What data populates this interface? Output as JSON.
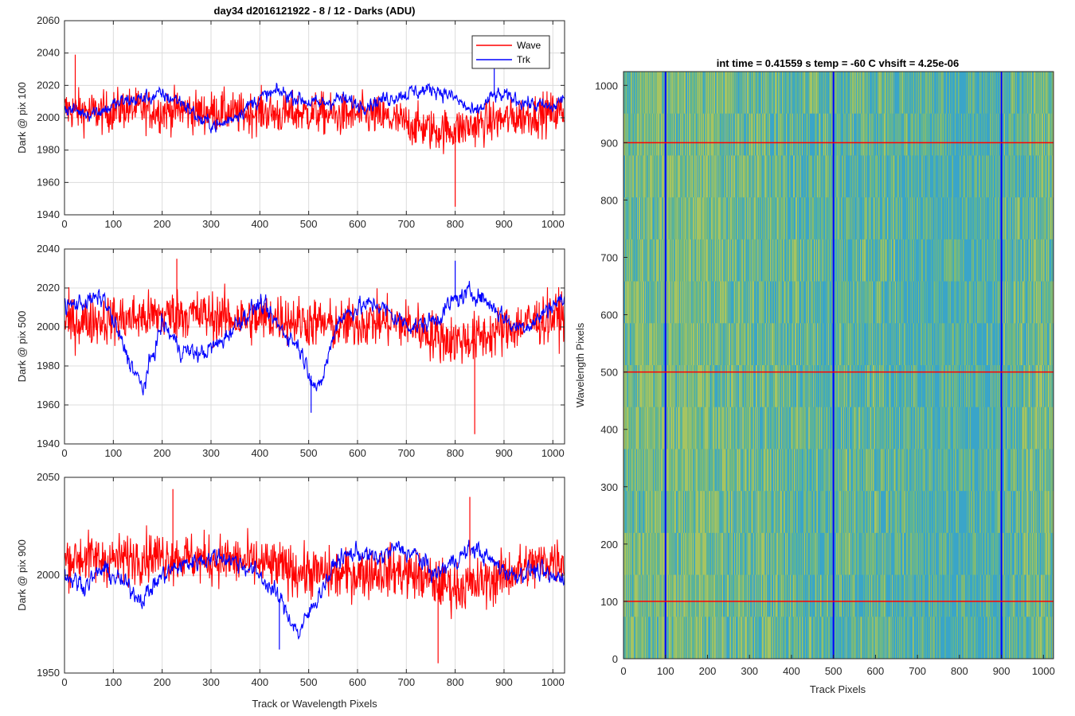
{
  "colors": {
    "wave": "#ff0000",
    "trk": "#0000ff",
    "grid": "#dcdcdc",
    "axis": "#262626"
  },
  "figure_title": "day34 d2016121922 - 8 / 12 - Darks (ADU)",
  "chart_data": [
    {
      "type": "line",
      "id": "pix100",
      "title": "day34 d2016121922 - 8 / 12 - Darks (ADU)",
      "ylabel": "Dark @ pix 100",
      "xlabel": "",
      "xlim": [
        0,
        1024
      ],
      "ylim": [
        1940,
        2060
      ],
      "xticks": [
        0,
        100,
        200,
        300,
        400,
        500,
        600,
        700,
        800,
        900,
        1000
      ],
      "yticks": [
        1940,
        1960,
        1980,
        2000,
        2020,
        2040,
        2060
      ],
      "grid": true,
      "legend": {
        "position": "top-right",
        "entries": [
          "Wave",
          "Trk"
        ]
      },
      "series": [
        {
          "name": "Wave",
          "color": "#ff0000",
          "x": [
            0,
            40,
            80,
            120,
            160,
            200,
            240,
            280,
            320,
            360,
            400,
            440,
            480,
            520,
            560,
            600,
            640,
            680,
            720,
            760,
            800,
            840,
            880,
            920,
            960,
            1000,
            1024
          ],
          "y": [
            2005,
            2004,
            2003,
            2006,
            2005,
            2004,
            2005,
            2003,
            2004,
            2002,
            2004,
            2002,
            2003,
            2003,
            2001,
            2002,
            2001,
            1998,
            1995,
            1992,
            1993,
            1995,
            1998,
            2000,
            2002,
            2003,
            2004
          ]
        },
        {
          "name": "Trk",
          "color": "#0000ff",
          "x": [
            0,
            40,
            80,
            120,
            160,
            200,
            240,
            280,
            320,
            360,
            400,
            440,
            480,
            520,
            560,
            600,
            640,
            680,
            720,
            760,
            800,
            840,
            880,
            920,
            960,
            1000,
            1024
          ],
          "y": [
            2006,
            2003,
            2005,
            2010,
            2012,
            2014,
            2010,
            1998,
            1995,
            2004,
            2012,
            2016,
            2012,
            2008,
            2012,
            2008,
            2010,
            2014,
            2016,
            2018,
            2012,
            2002,
            2014,
            2012,
            2008,
            2006,
            2013
          ]
        }
      ],
      "extremes": {
        "wave_min": [
          800,
          1945
        ],
        "wave_max": [
          22,
          2039
        ],
        "trk_max": [
          880,
          2033
        ]
      }
    },
    {
      "type": "line",
      "id": "pix500",
      "ylabel": "Dark @ pix 500",
      "xlabel": "",
      "xlim": [
        0,
        1024
      ],
      "ylim": [
        1940,
        2040
      ],
      "xticks": [
        0,
        100,
        200,
        300,
        400,
        500,
        600,
        700,
        800,
        900,
        1000
      ],
      "yticks": [
        1940,
        1960,
        1980,
        2000,
        2020,
        2040
      ],
      "grid": true,
      "series": [
        {
          "name": "Wave",
          "color": "#ff0000",
          "x": [
            0,
            40,
            80,
            120,
            160,
            200,
            240,
            280,
            320,
            360,
            400,
            440,
            480,
            520,
            560,
            600,
            640,
            680,
            720,
            760,
            800,
            840,
            880,
            920,
            960,
            1000,
            1024
          ],
          "y": [
            2002,
            2003,
            2004,
            2004,
            2005,
            2006,
            2007,
            2006,
            2005,
            2004,
            2004,
            2005,
            2003,
            2002,
            2000,
            2002,
            2003,
            2002,
            2000,
            1995,
            1993,
            1994,
            1997,
            2000,
            2003,
            2005,
            2006
          ]
        },
        {
          "name": "Trk",
          "color": "#0000ff",
          "x": [
            0,
            40,
            80,
            120,
            160,
            200,
            240,
            280,
            320,
            360,
            400,
            440,
            480,
            520,
            560,
            600,
            640,
            680,
            720,
            760,
            800,
            840,
            880,
            920,
            960,
            1000,
            1024
          ],
          "y": [
            2010,
            2013,
            2015,
            1990,
            1968,
            2002,
            1988,
            1986,
            1992,
            2004,
            2012,
            2000,
            1990,
            1966,
            2004,
            2010,
            2012,
            2004,
            2000,
            2004,
            2014,
            2018,
            2010,
            2000,
            2002,
            2012,
            2014
          ]
        }
      ],
      "extremes": {
        "wave_min": [
          840,
          1945
        ],
        "wave_max": [
          230,
          2035
        ],
        "trk_min": [
          505,
          1956
        ],
        "trk_max": [
          800,
          2034
        ]
      }
    },
    {
      "type": "line",
      "id": "pix900",
      "ylabel": "Dark @ pix 900",
      "xlabel": "Track or Wavelength Pixels",
      "xlim": [
        0,
        1024
      ],
      "ylim": [
        1950,
        2050
      ],
      "xticks": [
        0,
        100,
        200,
        300,
        400,
        500,
        600,
        700,
        800,
        900,
        1000
      ],
      "yticks": [
        1950,
        2000,
        2050
      ],
      "grid": true,
      "series": [
        {
          "name": "Wave",
          "color": "#ff0000",
          "x": [
            0,
            40,
            80,
            120,
            160,
            200,
            240,
            280,
            320,
            360,
            400,
            440,
            480,
            520,
            560,
            600,
            640,
            680,
            720,
            760,
            800,
            840,
            880,
            920,
            960,
            1000,
            1024
          ],
          "y": [
            2008,
            2009,
            2008,
            2008,
            2010,
            2010,
            2009,
            2008,
            2008,
            2007,
            2006,
            2004,
            2002,
            2001,
            2000,
            2001,
            2002,
            2002,
            2000,
            1996,
            1994,
            1995,
            1998,
            2002,
            2005,
            2008,
            2008
          ]
        },
        {
          "name": "Trk",
          "color": "#0000ff",
          "x": [
            0,
            40,
            80,
            120,
            160,
            200,
            240,
            280,
            320,
            360,
            400,
            440,
            480,
            520,
            560,
            600,
            640,
            680,
            720,
            760,
            800,
            840,
            880,
            920,
            960,
            1000,
            1024
          ],
          "y": [
            2000,
            1995,
            2003,
            1996,
            1988,
            2000,
            2005,
            2008,
            2010,
            2006,
            2000,
            1988,
            1970,
            1990,
            2008,
            2012,
            2008,
            2014,
            2010,
            2000,
            2008,
            2014,
            2006,
            2000,
            2003,
            1998,
            2000
          ]
        }
      ],
      "extremes": {
        "wave_max": [
          222,
          2044
        ],
        "wave_max2": [
          830,
          2040
        ],
        "wave_min": [
          765,
          1955
        ],
        "trk_min": [
          440,
          1962
        ]
      }
    },
    {
      "type": "heatmap",
      "id": "dark-image",
      "title": "int time = 0.41559 s   temp = -60 C   vhsift = 4.25e-06",
      "xlabel": "Track Pixels",
      "ylabel": "Wavelength Pixels",
      "xlim": [
        0,
        1024
      ],
      "ylim": [
        0,
        1024
      ],
      "xticks": [
        0,
        100,
        200,
        300,
        400,
        500,
        600,
        700,
        800,
        900,
        1000
      ],
      "yticks": [
        0,
        100,
        200,
        300,
        400,
        500,
        600,
        700,
        800,
        900,
        1000
      ],
      "grid": false,
      "colormap": [
        "#3aa5c8",
        "#5ab39a",
        "#7dba78",
        "#a6c462"
      ],
      "column_bias": {
        "x": [
          0,
          100,
          200,
          300,
          400,
          500,
          600,
          700,
          800,
          900,
          1000,
          1024
        ],
        "level": [
          0.55,
          0.62,
          0.6,
          0.5,
          0.45,
          0.35,
          0.4,
          0.3,
          0.25,
          0.35,
          0.55,
          0.6
        ]
      },
      "markers": {
        "vertical_lines": {
          "color": "#0000ff",
          "x": [
            100,
            500,
            900
          ]
        },
        "horizontal_lines": {
          "color": "#ff0000",
          "y": [
            100,
            500,
            900
          ]
        }
      }
    }
  ]
}
